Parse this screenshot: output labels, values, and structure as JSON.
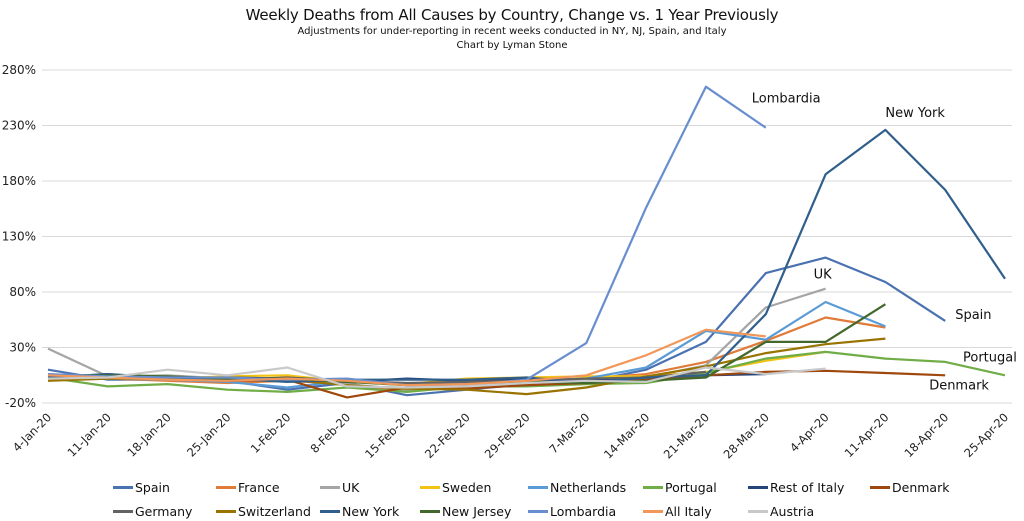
{
  "chart_data": {
    "type": "line",
    "title": "Weekly Deaths from All Causes by Country, Change vs. 1 Year Previously",
    "subtitle": "Adjustments for under-reporting in recent weeks conducted in NY, NJ, Spain, and Italy",
    "byline": "Chart by Lyman Stone",
    "xlabel": "",
    "ylabel": "",
    "ylim": [
      -20,
      280
    ],
    "y_ticks": [
      -20,
      30,
      80,
      130,
      180,
      230,
      280
    ],
    "y_tick_labels": [
      "-20%",
      "30%",
      "80%",
      "130%",
      "180%",
      "230%",
      "280%"
    ],
    "grid": true,
    "legend_placement": "bottom",
    "x": [
      "4-Jan-20",
      "11-Jan-20",
      "18-Jan-20",
      "25-Jan-20",
      "1-Feb-20",
      "8-Feb-20",
      "15-Feb-20",
      "22-Feb-20",
      "29-Feb-20",
      "7-Mar-20",
      "14-Mar-20",
      "21-Mar-20",
      "28-Mar-20",
      "4-Apr-20",
      "11-Apr-20",
      "18-Apr-20",
      "25-Apr-20"
    ],
    "series": [
      {
        "name": "Spain",
        "color": "#4a72b0",
        "values": [
          10,
          1,
          1,
          0,
          -8,
          -2,
          -13,
          -8,
          -3,
          -1,
          10,
          35,
          97,
          111,
          89,
          54,
          null
        ]
      },
      {
        "name": "France",
        "color": "#e07b39",
        "values": [
          3,
          2,
          0,
          -2,
          0,
          -3,
          -9,
          -4,
          -2,
          2,
          6,
          17,
          36,
          57,
          48,
          null,
          null
        ]
      },
      {
        "name": "UK",
        "color": "#a5a5a5",
        "values": [
          29,
          4,
          5,
          2,
          1,
          -3,
          -8,
          -5,
          -1,
          0,
          3,
          14,
          66,
          83,
          null,
          null,
          null
        ]
      },
      {
        "name": "Sweden",
        "color": "#f2c314",
        "values": [
          1,
          3,
          2,
          4,
          5,
          -1,
          -3,
          2,
          3,
          4,
          4,
          8,
          18,
          26,
          null,
          null,
          null
        ]
      },
      {
        "name": "Netherlands",
        "color": "#5b9bd5",
        "values": [
          6,
          2,
          1,
          -1,
          -6,
          0,
          -3,
          -3,
          0,
          2,
          12,
          45,
          37,
          71,
          49,
          null,
          null
        ]
      },
      {
        "name": "Portugal",
        "color": "#70ad47",
        "values": [
          3,
          -5,
          -3,
          -8,
          -10,
          -6,
          -10,
          -5,
          -5,
          -3,
          -2,
          7,
          20,
          26,
          20,
          17,
          5
        ]
      },
      {
        "name": "Rest of Italy",
        "color": "#264478",
        "values": [
          3,
          6,
          2,
          3,
          2,
          -1,
          2,
          0,
          2,
          1,
          3,
          5,
          6,
          null,
          null,
          null,
          null
        ]
      },
      {
        "name": "Denmark",
        "color": "#9e480e",
        "values": [
          4,
          5,
          2,
          0,
          1,
          -15,
          -6,
          -7,
          -4,
          -2,
          1,
          5,
          8,
          9,
          7,
          5,
          null
        ]
      },
      {
        "name": "Germany",
        "color": "#636363",
        "values": [
          3,
          4,
          3,
          1,
          3,
          0,
          -2,
          -1,
          0,
          2,
          3,
          8,
          null,
          null,
          null,
          null,
          null
        ]
      },
      {
        "name": "Switzerland",
        "color": "#997300",
        "values": [
          0,
          2,
          2,
          1,
          1,
          -4,
          -7,
          -8,
          -12,
          -6,
          4,
          13,
          25,
          33,
          38,
          null,
          null
        ]
      },
      {
        "name": "New York",
        "color": "#2f5f8a",
        "values": [
          3,
          6,
          3,
          2,
          -1,
          1,
          1,
          1,
          3,
          -2,
          3,
          5,
          60,
          186,
          226,
          172,
          92
        ]
      },
      {
        "name": "New Jersey",
        "color": "#43682b",
        "values": [
          5,
          5,
          4,
          2,
          2,
          -1,
          -4,
          -4,
          -1,
          -2,
          0,
          3,
          35,
          35,
          69,
          null,
          null
        ]
      },
      {
        "name": "Lombardia",
        "color": "#698ed0",
        "values": [
          6,
          4,
          3,
          3,
          1,
          2,
          -4,
          -4,
          1,
          34,
          156,
          265,
          228,
          null,
          null,
          null,
          null
        ]
      },
      {
        "name": "All Italy",
        "color": "#f1975a",
        "values": [
          5,
          3,
          1,
          0,
          2,
          0,
          -4,
          -3,
          0,
          5,
          23,
          46,
          40,
          null,
          null,
          null,
          null
        ]
      },
      {
        "name": "Austria",
        "color": "#c9c9c9",
        "values": [
          2,
          3,
          10,
          5,
          12,
          -5,
          -6,
          -5,
          -2,
          0,
          -1,
          12,
          6,
          11,
          null,
          null,
          null
        ]
      }
    ],
    "annotations": [
      {
        "text": "Lombardia",
        "series": "Lombardia"
      },
      {
        "text": "New York",
        "series": "New York"
      },
      {
        "text": "UK",
        "series": "UK"
      },
      {
        "text": "Spain",
        "series": "Spain"
      },
      {
        "text": "Portugal",
        "series": "Portugal"
      },
      {
        "text": "Denmark",
        "series": "Denmark"
      }
    ]
  }
}
